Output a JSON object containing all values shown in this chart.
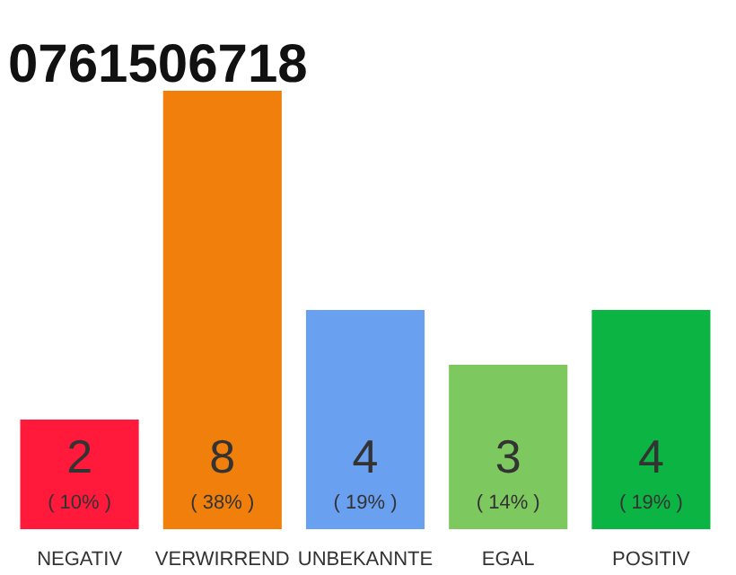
{
  "chart_data": {
    "type": "bar",
    "title": "0761506718",
    "categories": [
      "NEGATIV",
      "VERWIRREND",
      "UNBEKANNTE",
      "EGAL",
      "POSITIV"
    ],
    "values": [
      2,
      8,
      4,
      3,
      4
    ],
    "colors": [
      "#ff1a3c",
      "#f07f0c",
      "#6aa0f0",
      "#7dc85f",
      "#0cb443"
    ],
    "data_labels": true,
    "annotations": [
      "( 10% )",
      "( 38% )",
      "( 19% )",
      "( 14% )",
      "( 19% )"
    ],
    "grid": false
  }
}
